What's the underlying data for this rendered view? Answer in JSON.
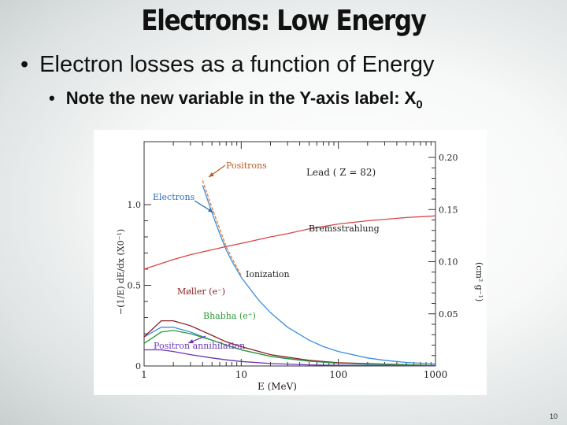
{
  "slide": {
    "title": "Electrons: Low Energy",
    "bullet1": "Electron losses as a function of Energy",
    "bullet2": "Note the new variable in the Y-axis label: X",
    "bullet2_sub": "0",
    "page_number": "10"
  },
  "chart_data": {
    "type": "line",
    "title": "Lead  ( Z = 82)",
    "xlabel": "E  (MeV)",
    "ylabel_left": "−(1/E) dE/dx  (X0⁻¹)",
    "ylabel_right": "(cm² g⁻¹)",
    "x_scale": "log",
    "xlim": [
      1,
      1000
    ],
    "ylim": [
      0,
      1.0
    ],
    "x_ticks": [
      "1",
      "10",
      "100",
      "1000"
    ],
    "y_ticks_left": [
      "0",
      "0.5",
      "1.0"
    ],
    "y_ticks_right": [
      "0.05",
      "0.10",
      "0.15",
      "0.20"
    ],
    "series": [
      {
        "name": "Electrons",
        "color": "#3a8fe0",
        "x": [
          4,
          5,
          6,
          7,
          8,
          10,
          15,
          20,
          30,
          50,
          70,
          100,
          200,
          300,
          500,
          1000
        ],
        "y": [
          1.12,
          0.95,
          0.82,
          0.72,
          0.65,
          0.55,
          0.41,
          0.33,
          0.24,
          0.16,
          0.12,
          0.09,
          0.05,
          0.035,
          0.022,
          0.012
        ]
      },
      {
        "name": "Positrons",
        "color": "#e07a3a",
        "x": [
          4,
          5,
          6,
          7,
          8,
          10
        ],
        "y": [
          1.15,
          0.98,
          0.85,
          0.74,
          0.67,
          0.56
        ]
      },
      {
        "name": "Bremsstrahlung",
        "color": "#d94545",
        "x": [
          1,
          2,
          3,
          5,
          7,
          10,
          20,
          30,
          50,
          100,
          200,
          500,
          1000
        ],
        "y": [
          0.6,
          0.66,
          0.69,
          0.72,
          0.74,
          0.76,
          0.8,
          0.82,
          0.85,
          0.88,
          0.9,
          0.92,
          0.93
        ]
      },
      {
        "name": "Ionization",
        "color": "#3a8fe0",
        "x": [
          1,
          1.5,
          2,
          3,
          5,
          7,
          10,
          20,
          30,
          50,
          100,
          200,
          500,
          1000
        ],
        "y": [
          0.18,
          0.24,
          0.24,
          0.21,
          0.16,
          0.13,
          0.1,
          0.06,
          0.045,
          0.03,
          0.017,
          0.01,
          0.005,
          0.003
        ]
      },
      {
        "name": "Møller (e⁻)",
        "color": "#8a2020",
        "x": [
          1,
          1.5,
          2,
          3,
          5,
          7,
          10,
          20,
          50,
          100,
          1000
        ],
        "y": [
          0.18,
          0.28,
          0.28,
          0.25,
          0.19,
          0.15,
          0.12,
          0.07,
          0.035,
          0.02,
          0.003
        ]
      },
      {
        "name": "Bhabha (e⁺)",
        "color": "#2a9a35",
        "x": [
          1,
          1.5,
          2,
          3,
          5,
          7,
          10,
          20,
          50,
          100,
          1000
        ],
        "y": [
          0.14,
          0.21,
          0.22,
          0.2,
          0.16,
          0.13,
          0.1,
          0.06,
          0.03,
          0.017,
          0.003
        ]
      },
      {
        "name": "Positron annihilation",
        "color": "#6a35b0",
        "x": [
          1,
          1.5,
          2,
          3,
          5,
          7,
          10,
          20,
          50,
          100,
          1000
        ],
        "y": [
          0.1,
          0.1,
          0.09,
          0.07,
          0.05,
          0.038,
          0.028,
          0.015,
          0.007,
          0.004,
          0.001
        ]
      }
    ]
  }
}
